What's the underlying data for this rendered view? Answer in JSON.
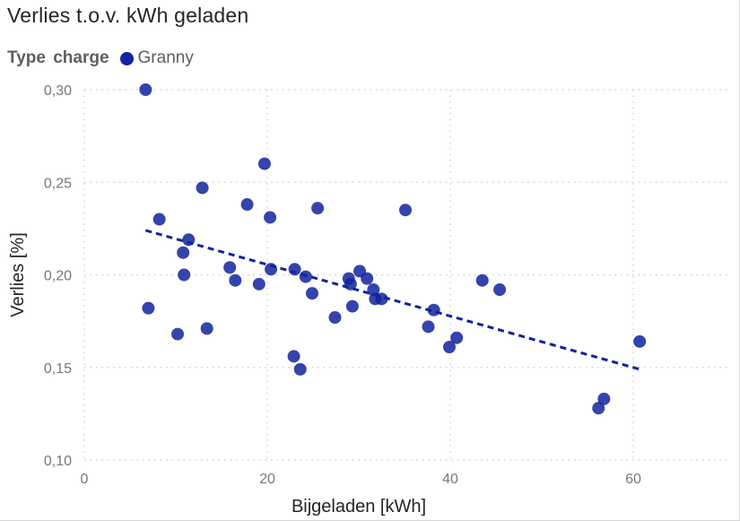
{
  "chart_data": {
    "type": "scatter",
    "title": "Verlies t.o.v. kWh geladen",
    "xlabel": "Bijgeladen [kWh]",
    "ylabel": "Verlies [%]",
    "xlim": [
      0,
      70
    ],
    "ylim": [
      0.1,
      0.3
    ],
    "x_ticks": [
      0,
      20,
      40,
      60
    ],
    "x_tick_labels": [
      "0",
      "20",
      "40",
      "60"
    ],
    "y_ticks": [
      0.1,
      0.15,
      0.2,
      0.25,
      0.3
    ],
    "y_tick_labels": [
      "0,10",
      "0,15",
      "0,20",
      "0,25",
      "0,30"
    ],
    "grid": true,
    "legend": {
      "title": "Type  charge",
      "position": "top-left"
    },
    "series": [
      {
        "name": "Granny",
        "color": "#12239e",
        "points": [
          [
            6.7,
            0.3
          ],
          [
            7.0,
            0.182
          ],
          [
            8.2,
            0.23
          ],
          [
            10.2,
            0.168
          ],
          [
            10.8,
            0.212
          ],
          [
            10.9,
            0.2
          ],
          [
            11.4,
            0.219
          ],
          [
            12.9,
            0.247
          ],
          [
            13.4,
            0.171
          ],
          [
            15.9,
            0.204
          ],
          [
            16.5,
            0.197
          ],
          [
            17.8,
            0.238
          ],
          [
            19.1,
            0.195
          ],
          [
            19.7,
            0.26
          ],
          [
            20.3,
            0.231
          ],
          [
            20.4,
            0.203
          ],
          [
            22.9,
            0.156
          ],
          [
            23.0,
            0.203
          ],
          [
            23.6,
            0.149
          ],
          [
            24.2,
            0.199
          ],
          [
            24.9,
            0.19
          ],
          [
            25.5,
            0.236
          ],
          [
            27.4,
            0.177
          ],
          [
            28.9,
            0.198
          ],
          [
            29.1,
            0.195
          ],
          [
            29.3,
            0.183
          ],
          [
            30.1,
            0.202
          ],
          [
            30.9,
            0.198
          ],
          [
            31.6,
            0.192
          ],
          [
            31.8,
            0.187
          ],
          [
            32.5,
            0.187
          ],
          [
            35.1,
            0.235
          ],
          [
            37.6,
            0.172
          ],
          [
            38.2,
            0.181
          ],
          [
            39.9,
            0.161
          ],
          [
            40.7,
            0.166
          ],
          [
            43.5,
            0.197
          ],
          [
            45.4,
            0.192
          ],
          [
            56.2,
            0.128
          ],
          [
            56.8,
            0.133
          ],
          [
            60.7,
            0.164
          ]
        ]
      }
    ],
    "trend_line": {
      "style": "dashed",
      "color": "#12239e",
      "x": [
        6.7,
        60.7
      ],
      "y": [
        0.224,
        0.149
      ]
    }
  }
}
